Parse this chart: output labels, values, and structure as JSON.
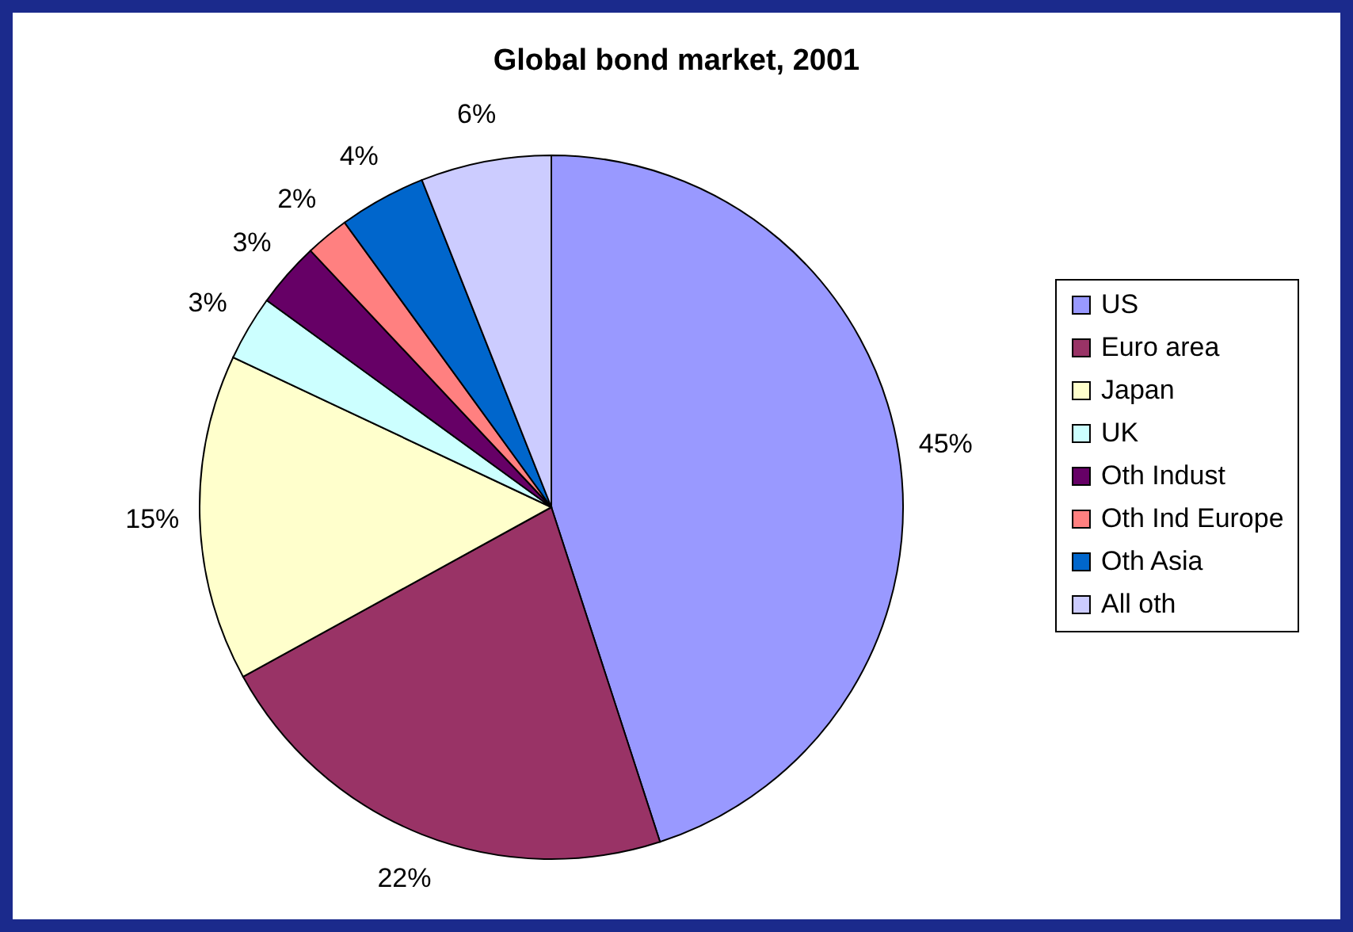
{
  "chart_data": {
    "type": "pie",
    "title": "Global bond market, 2001",
    "categories": [
      "US",
      "Euro area",
      "Japan",
      "UK",
      "Oth Indust",
      "Oth Ind Europe",
      "Oth Asia",
      "All oth"
    ],
    "values": [
      45,
      22,
      15,
      3,
      3,
      2,
      4,
      6
    ],
    "colors": [
      "#9999ff",
      "#993366",
      "#ffffcc",
      "#ccffff",
      "#660066",
      "#ff8080",
      "#0066cc",
      "#ccccff"
    ],
    "value_labels": [
      "45%",
      "22%",
      "15%",
      "3%",
      "3%",
      "2%",
      "4%",
      "6%"
    ],
    "legend": "right"
  }
}
